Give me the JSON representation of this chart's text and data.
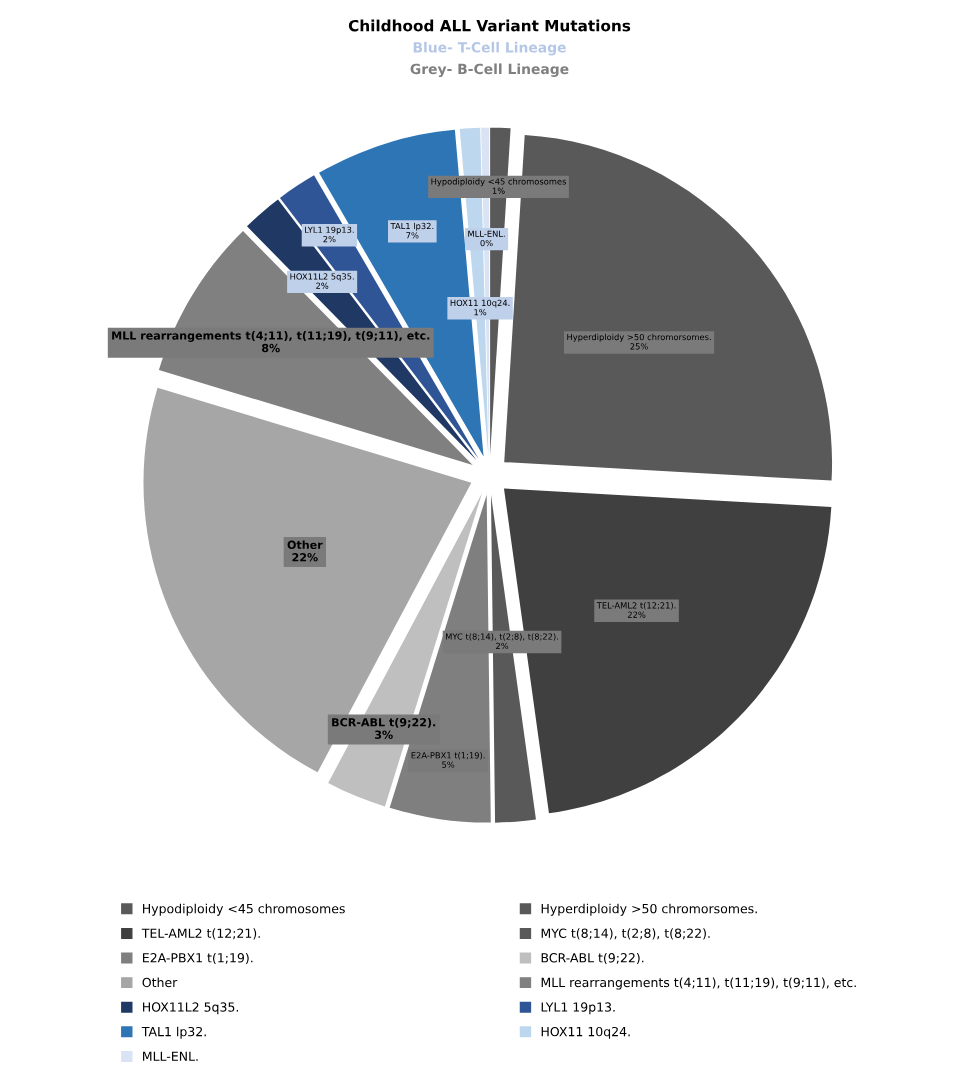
{
  "chart_data": {
    "type": "pie",
    "title": "Childhood ALL Variant Mutations",
    "subtitle": [
      "Blue- T-Cell Lineage",
      "Grey- B-Cell Lineage"
    ],
    "categories": [
      "Hypodiploidy <45 chromosomes",
      "Hyperdiploidy >50 chromorsomes.",
      "TEL-AML2 t(12;21).",
      "MYC t(8;14), t(2;8), t(8;22).",
      "E2A-PBX1 t(1;19).",
      "BCR-ABL t(9;22).",
      "Other",
      "MLL rearrangements t(4;11), t(11;19), t(9;11), etc.",
      "HOX11L2 5q35.",
      "LYL1 19p13.",
      "TAL1 lp32.",
      "HOX11 10q24.",
      "MLL-ENL."
    ],
    "values": [
      1,
      25,
      22,
      2,
      5,
      3,
      22,
      8,
      2,
      2,
      7,
      1,
      0.4
    ],
    "value_labels": [
      "1%",
      "25%",
      "22%",
      "2%",
      "5%",
      "3%",
      "22%",
      "8%",
      "2%",
      "2%",
      "7%",
      "1%",
      "0%"
    ],
    "colors": [
      "#595959",
      "#595959",
      "#404040",
      "#595959",
      "#7f7f7f",
      "#bfbfbf",
      "#a6a6a6",
      "#808080",
      "#1f3864",
      "#2f5597",
      "#2e75b6",
      "#bdd7ee",
      "#dae3f3"
    ],
    "legend": "bottom"
  }
}
